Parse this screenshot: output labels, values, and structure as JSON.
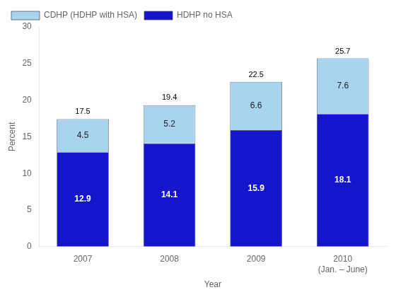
{
  "chart_data": {
    "type": "bar",
    "stacked": true,
    "categories": [
      "2007",
      "2008",
      "2009",
      "2010\n(Jan. – June)"
    ],
    "series": [
      {
        "name": "HDHP no HSA",
        "color": "#1515CC",
        "values": [
          12.9,
          14.1,
          15.9,
          18.1
        ]
      },
      {
        "name": "CDHP (HDHP with HSA)",
        "color": "#A8D4F0",
        "values": [
          4.5,
          5.2,
          6.6,
          7.6
        ]
      }
    ],
    "totals": [
      17.5,
      19.4,
      22.5,
      25.7
    ],
    "xlabel": "Year",
    "ylabel": "Percent",
    "ylim": [
      0,
      30
    ],
    "yticks": [
      0,
      5,
      10,
      15,
      20,
      25,
      30
    ],
    "grid": false,
    "legend": "upper left",
    "data_labels": true
  }
}
